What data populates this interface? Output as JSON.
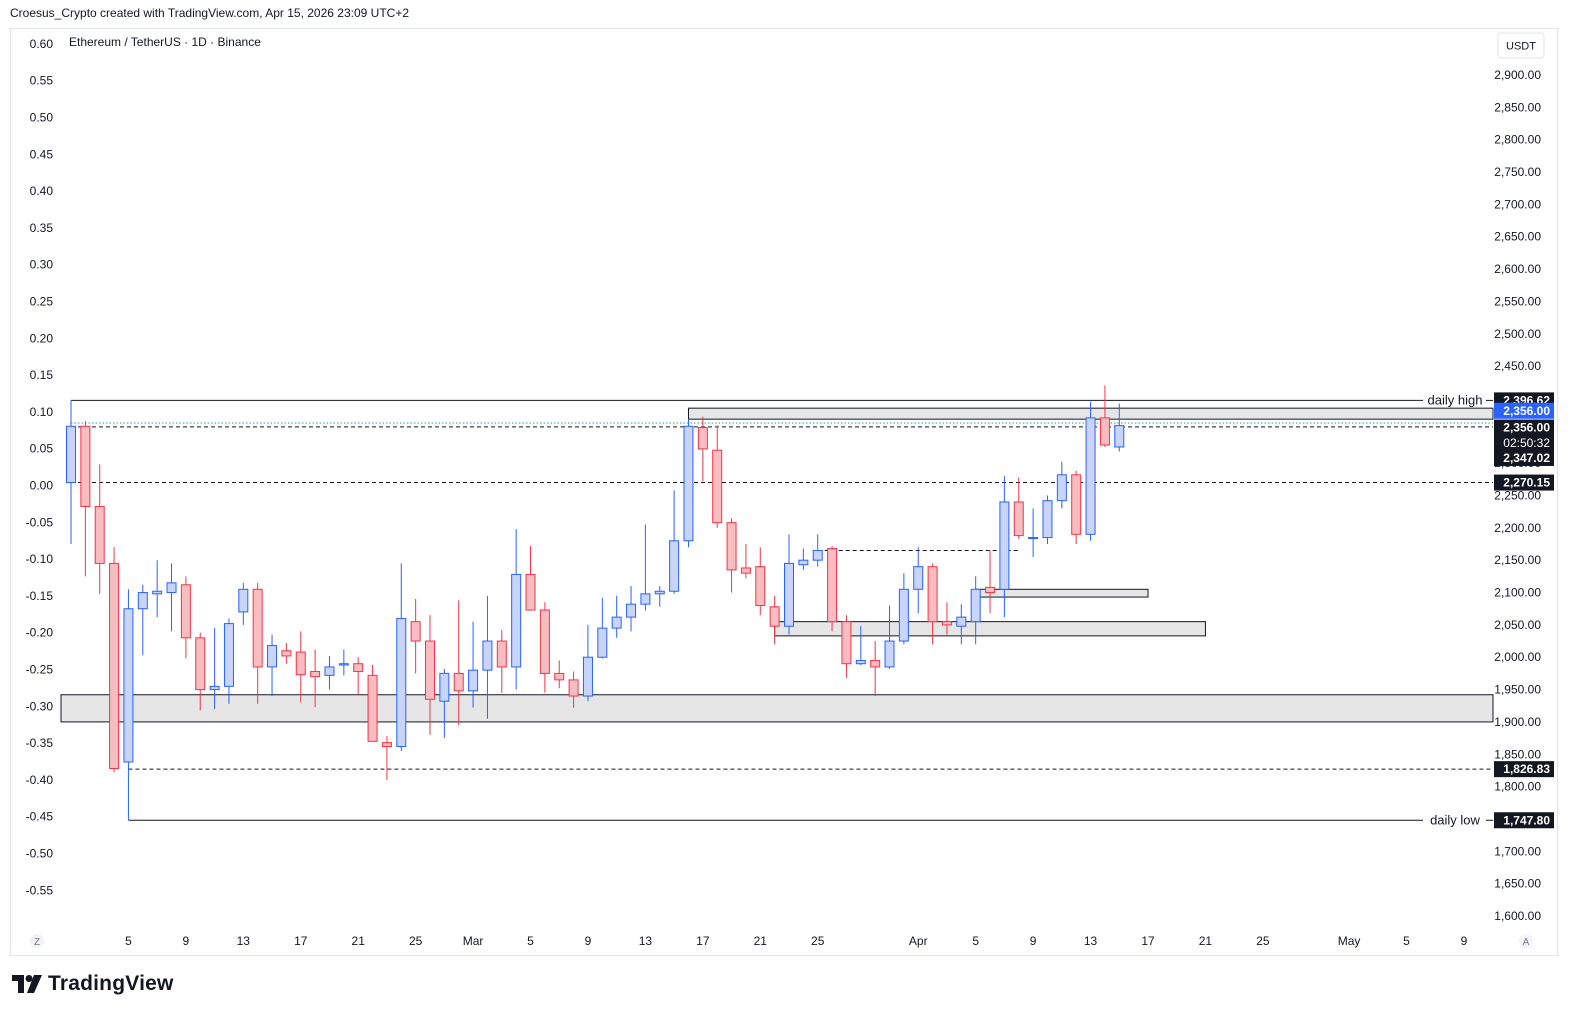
{
  "header": {
    "credit": "Croesus_Crypto created with TradingView.com, Apr 15, 2026 23:09 UTC+2"
  },
  "footer": {
    "logo_text": "TradingView",
    "logo_icon": "tradingview-logo-icon"
  },
  "colors": {
    "up": "#2962ff",
    "up_fill": "#c9d4fb",
    "down": "#f23645",
    "down_fill": "#f9bcc0",
    "zone_fill": "#e6e6e6",
    "price_tag_dark": "#131722",
    "price_tag_blue": "#2962ff"
  },
  "chart_data": {
    "type": "candlestick",
    "symbol_title": "Ethereum / TetherUS · 1D · Binance",
    "price_axis_unit": "USDT",
    "left_axis": {
      "ticks": [
        "0.60",
        "0.55",
        "0.50",
        "0.45",
        "0.40",
        "0.35",
        "0.30",
        "0.25",
        "0.20",
        "0.15",
        "0.10",
        "0.05",
        "0.00",
        "-0.05",
        "-0.10",
        "-0.15",
        "-0.20",
        "-0.25",
        "-0.30",
        "-0.35",
        "-0.40",
        "-0.45",
        "-0.50",
        "-0.55"
      ]
    },
    "right_axis": {
      "range": [
        1580,
        2935
      ],
      "ticks": [
        "2,900.00",
        "2,850.00",
        "2,800.00",
        "2,750.00",
        "2,700.00",
        "2,650.00",
        "2,600.00",
        "2,550.00",
        "2,500.00",
        "2,450.00",
        "2,400.00",
        "2,350.00",
        "2,300.00",
        "2,250.00",
        "2,200.00",
        "2,150.00",
        "2,100.00",
        "2,050.00",
        "2,000.00",
        "1,950.00",
        "1,900.00",
        "1,850.00",
        "1,800.00",
        "1,750.00",
        "1,700.00",
        "1,650.00",
        "1,600.00"
      ]
    },
    "x_axis": {
      "labels": [
        {
          "day": 5,
          "text": "5"
        },
        {
          "day": 9,
          "text": "9"
        },
        {
          "day": 13,
          "text": "13"
        },
        {
          "day": 17,
          "text": "17"
        },
        {
          "day": 21,
          "text": "21"
        },
        {
          "day": 25,
          "text": "25"
        },
        {
          "day": 29,
          "text": "Mar"
        },
        {
          "day": 33,
          "text": "5"
        },
        {
          "day": 37,
          "text": "9"
        },
        {
          "day": 41,
          "text": "13"
        },
        {
          "day": 45,
          "text": "17"
        },
        {
          "day": 49,
          "text": "21"
        },
        {
          "day": 53,
          "text": "25"
        },
        {
          "day": 60,
          "text": "Apr"
        },
        {
          "day": 64,
          "text": "5"
        },
        {
          "day": 68,
          "text": "9"
        },
        {
          "day": 72,
          "text": "13"
        },
        {
          "day": 76,
          "text": "17"
        },
        {
          "day": 80,
          "text": "21"
        },
        {
          "day": 84,
          "text": "25"
        },
        {
          "day": 90,
          "text": "May"
        },
        {
          "day": 94,
          "text": "5"
        },
        {
          "day": 98,
          "text": "9"
        }
      ],
      "left_button": "Z",
      "right_button": "A"
    },
    "candles": [
      {
        "day": 1,
        "o": 2270,
        "h": 2397,
        "l": 2175,
        "c": 2357
      },
      {
        "day": 2,
        "o": 2357,
        "h": 2365,
        "l": 2125,
        "c": 2233
      },
      {
        "day": 3,
        "o": 2233,
        "h": 2298,
        "l": 2098,
        "c": 2145
      },
      {
        "day": 4,
        "o": 2145,
        "h": 2170,
        "l": 1822,
        "c": 1828
      },
      {
        "day": 5,
        "o": 1838,
        "h": 2105,
        "l": 1748,
        "c": 2075
      },
      {
        "day": 6,
        "o": 2075,
        "h": 2112,
        "l": 2003,
        "c": 2100
      },
      {
        "day": 7,
        "o": 2098,
        "h": 2150,
        "l": 2062,
        "c": 2102
      },
      {
        "day": 8,
        "o": 2100,
        "h": 2145,
        "l": 2040,
        "c": 2115
      },
      {
        "day": 9,
        "o": 2112,
        "h": 2125,
        "l": 1998,
        "c": 2030
      },
      {
        "day": 10,
        "o": 2030,
        "h": 2038,
        "l": 1918,
        "c": 1950
      },
      {
        "day": 11,
        "o": 1950,
        "h": 2045,
        "l": 1920,
        "c": 1955
      },
      {
        "day": 12,
        "o": 1955,
        "h": 2060,
        "l": 1928,
        "c": 2052
      },
      {
        "day": 13,
        "o": 2070,
        "h": 2115,
        "l": 2050,
        "c": 2105
      },
      {
        "day": 14,
        "o": 2105,
        "h": 2115,
        "l": 1928,
        "c": 1985
      },
      {
        "day": 15,
        "o": 1985,
        "h": 2035,
        "l": 1940,
        "c": 2018
      },
      {
        "day": 16,
        "o": 2010,
        "h": 2022,
        "l": 1990,
        "c": 2002
      },
      {
        "day": 17,
        "o": 2008,
        "h": 2040,
        "l": 1930,
        "c": 1973
      },
      {
        "day": 18,
        "o": 1978,
        "h": 2012,
        "l": 1923,
        "c": 1970
      },
      {
        "day": 19,
        "o": 1972,
        "h": 2002,
        "l": 1950,
        "c": 1985
      },
      {
        "day": 20,
        "o": 1988,
        "h": 2012,
        "l": 1972,
        "c": 1990
      },
      {
        "day": 21,
        "o": 1990,
        "h": 2000,
        "l": 1942,
        "c": 1978
      },
      {
        "day": 22,
        "o": 1972,
        "h": 1988,
        "l": 1875,
        "c": 1870
      },
      {
        "day": 23,
        "o": 1868,
        "h": 1878,
        "l": 1810,
        "c": 1862
      },
      {
        "day": 24,
        "o": 1862,
        "h": 2145,
        "l": 1855,
        "c": 2060
      },
      {
        "day": 25,
        "o": 2055,
        "h": 2090,
        "l": 1975,
        "c": 2025
      },
      {
        "day": 26,
        "o": 2025,
        "h": 2065,
        "l": 1880,
        "c": 1935
      },
      {
        "day": 27,
        "o": 1932,
        "h": 1982,
        "l": 1875,
        "c": 1975
      },
      {
        "day": 28,
        "o": 1975,
        "h": 2088,
        "l": 1895,
        "c": 1948
      },
      {
        "day": 29,
        "o": 1948,
        "h": 2055,
        "l": 1922,
        "c": 1980
      },
      {
        "day": 30,
        "o": 1980,
        "h": 2095,
        "l": 1905,
        "c": 2025
      },
      {
        "day": 31,
        "o": 2025,
        "h": 2042,
        "l": 1945,
        "c": 1985
      },
      {
        "day": 32,
        "o": 1985,
        "h": 2198,
        "l": 1950,
        "c": 2128
      },
      {
        "day": 33,
        "o": 2128,
        "h": 2172,
        "l": 2072,
        "c": 2073
      },
      {
        "day": 34,
        "o": 2073,
        "h": 2085,
        "l": 1945,
        "c": 1975
      },
      {
        "day": 35,
        "o": 1975,
        "h": 1995,
        "l": 1952,
        "c": 1965
      },
      {
        "day": 36,
        "o": 1965,
        "h": 1978,
        "l": 1922,
        "c": 1940
      },
      {
        "day": 37,
        "o": 1940,
        "h": 2050,
        "l": 1932,
        "c": 2000
      },
      {
        "day": 38,
        "o": 2000,
        "h": 2092,
        "l": 1998,
        "c": 2045
      },
      {
        "day": 39,
        "o": 2045,
        "h": 2095,
        "l": 2030,
        "c": 2062
      },
      {
        "day": 40,
        "o": 2062,
        "h": 2110,
        "l": 2040,
        "c": 2082
      },
      {
        "day": 41,
        "o": 2082,
        "h": 2205,
        "l": 2072,
        "c": 2098
      },
      {
        "day": 42,
        "o": 2098,
        "h": 2110,
        "l": 2078,
        "c": 2102
      },
      {
        "day": 43,
        "o": 2102,
        "h": 2258,
        "l": 2098,
        "c": 2180
      },
      {
        "day": 44,
        "o": 2180,
        "h": 2368,
        "l": 2170,
        "c": 2357
      },
      {
        "day": 45,
        "o": 2355,
        "h": 2372,
        "l": 2272,
        "c": 2322
      },
      {
        "day": 46,
        "o": 2320,
        "h": 2358,
        "l": 2200,
        "c": 2208
      },
      {
        "day": 47,
        "o": 2208,
        "h": 2215,
        "l": 2100,
        "c": 2135
      },
      {
        "day": 48,
        "o": 2138,
        "h": 2175,
        "l": 2122,
        "c": 2130
      },
      {
        "day": 49,
        "o": 2140,
        "h": 2170,
        "l": 2065,
        "c": 2080
      },
      {
        "day": 50,
        "o": 2078,
        "h": 2095,
        "l": 2020,
        "c": 2048
      },
      {
        "day": 51,
        "o": 2048,
        "h": 2190,
        "l": 2035,
        "c": 2145
      },
      {
        "day": 52,
        "o": 2143,
        "h": 2168,
        "l": 2135,
        "c": 2150
      },
      {
        "day": 53,
        "o": 2150,
        "h": 2190,
        "l": 2140,
        "c": 2165
      },
      {
        "day": 54,
        "o": 2168,
        "h": 2172,
        "l": 2040,
        "c": 2055
      },
      {
        "day": 55,
        "o": 2055,
        "h": 2065,
        "l": 1968,
        "c": 1990
      },
      {
        "day": 56,
        "o": 1990,
        "h": 2048,
        "l": 1988,
        "c": 1995
      },
      {
        "day": 57,
        "o": 1995,
        "h": 2025,
        "l": 1940,
        "c": 1985
      },
      {
        "day": 58,
        "o": 1985,
        "h": 2080,
        "l": 1982,
        "c": 2025
      },
      {
        "day": 59,
        "o": 2025,
        "h": 2130,
        "l": 2020,
        "c": 2105
      },
      {
        "day": 60,
        "o": 2105,
        "h": 2170,
        "l": 2068,
        "c": 2140
      },
      {
        "day": 61,
        "o": 2140,
        "h": 2145,
        "l": 2020,
        "c": 2055
      },
      {
        "day": 62,
        "o": 2055,
        "h": 2085,
        "l": 2035,
        "c": 2050
      },
      {
        "day": 63,
        "o": 2048,
        "h": 2082,
        "l": 2020,
        "c": 2062
      },
      {
        "day": 64,
        "o": 2055,
        "h": 2125,
        "l": 2020,
        "c": 2105
      },
      {
        "day": 65,
        "o": 2108,
        "h": 2165,
        "l": 2068,
        "c": 2100
      },
      {
        "day": 66,
        "o": 2105,
        "h": 2280,
        "l": 2062,
        "c": 2240
      },
      {
        "day": 67,
        "o": 2240,
        "h": 2278,
        "l": 2183,
        "c": 2188
      },
      {
        "day": 68,
        "o": 2185,
        "h": 2230,
        "l": 2155,
        "c": 2185
      },
      {
        "day": 69,
        "o": 2185,
        "h": 2250,
        "l": 2175,
        "c": 2242
      },
      {
        "day": 70,
        "o": 2242,
        "h": 2302,
        "l": 2230,
        "c": 2282
      },
      {
        "day": 71,
        "o": 2282,
        "h": 2288,
        "l": 2175,
        "c": 2190
      },
      {
        "day": 72,
        "o": 2190,
        "h": 2395,
        "l": 2180,
        "c": 2370
      },
      {
        "day": 73,
        "o": 2370,
        "h": 2420,
        "l": 2325,
        "c": 2328
      },
      {
        "day": 74,
        "o": 2325,
        "h": 2392,
        "l": 2318,
        "c": 2358
      }
    ],
    "horizontal_lines": [
      {
        "price": 2397,
        "from_day": 1,
        "style": "solid",
        "color": "#131722",
        "label": "daily high"
      },
      {
        "price": 2356,
        "from_day": 1,
        "style": "dashed",
        "color": "#131722"
      },
      {
        "price": 2362,
        "from_day": 1,
        "style": "dotted",
        "color": "#2a9d8f"
      },
      {
        "price": 2270,
        "from_day": 1,
        "style": "dashed",
        "color": "#131722"
      },
      {
        "price": 2165,
        "from_day": 53,
        "to_day": 67,
        "style": "dashed",
        "color": "#131722"
      },
      {
        "price": 1827,
        "from_day": 5,
        "style": "dashed",
        "color": "#131722"
      },
      {
        "price": 1748,
        "from_day": 5,
        "style": "solid",
        "color": "#131722",
        "label": "daily low"
      }
    ],
    "zones": [
      {
        "from_day": 44,
        "to_day": "end",
        "top": 2385,
        "bottom": 2368
      },
      {
        "from_day": "start",
        "to_day": "end",
        "top": 1942,
        "bottom": 1900
      },
      {
        "from_day": 50,
        "to_day": 80,
        "top": 2055,
        "bottom": 2033
      },
      {
        "from_day": 64,
        "to_day": 76,
        "top": 2105,
        "bottom": 2093
      }
    ],
    "price_tags": [
      {
        "price": 2397,
        "text": "2,396.62",
        "style": "dark"
      },
      {
        "price": 2381,
        "text": "2,356.00",
        "style": "blue"
      },
      {
        "price": 2355,
        "text": "2,356.00",
        "style": "dark"
      },
      {
        "price": 2331,
        "text": "02:50:32",
        "style": "dark-plain"
      },
      {
        "price": 2308,
        "text": "2,347.02",
        "style": "dark"
      },
      {
        "price": 2270,
        "text": "2,270.15",
        "style": "dark"
      },
      {
        "price": 1827,
        "text": "1,826.83",
        "style": "dark"
      },
      {
        "price": 1748,
        "text": "1,747.80",
        "style": "dark"
      }
    ]
  }
}
